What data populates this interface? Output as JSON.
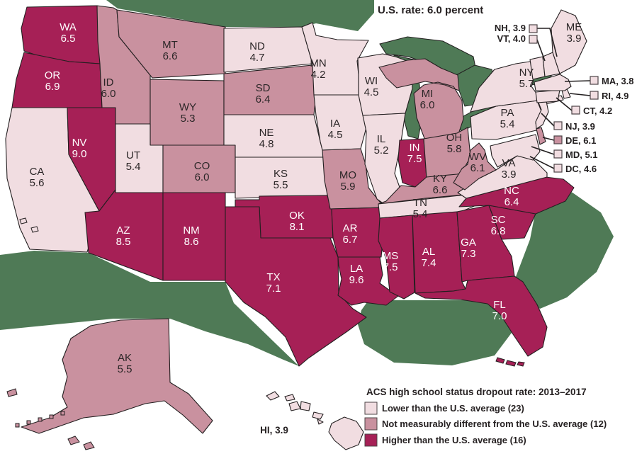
{
  "colors": {
    "lower": "#f1dde1",
    "not_diff": "#c9919f",
    "higher": "#a62056",
    "water": "#4f7a56",
    "border": "#231f20",
    "label_dark": "#2b2627",
    "label_light": "#ffffff"
  },
  "chart_data": {
    "type": "heatmap",
    "subtype": "us_state_choropleth",
    "title": "U.S. rate: 6.0 percent",
    "us_rate_percent": "6.0",
    "legend": {
      "title": "ACS high school status dropout rate: 2013–2017",
      "position": "bottom-right",
      "items": [
        {
          "key": "lower",
          "label": "Lower than the U.S. average (23)"
        },
        {
          "key": "not_diff",
          "label": "Not measurably different from the U.S. average (12)"
        },
        {
          "key": "higher",
          "label": "Higher than the U.S. average (16)"
        }
      ]
    },
    "states": [
      {
        "abbr": "WA",
        "value": "6.5",
        "category": "higher"
      },
      {
        "abbr": "OR",
        "value": "6.9",
        "category": "higher"
      },
      {
        "abbr": "CA",
        "value": "5.6",
        "category": "lower"
      },
      {
        "abbr": "NV",
        "value": "9.0",
        "category": "higher"
      },
      {
        "abbr": "ID",
        "value": "6.0",
        "category": "not_diff"
      },
      {
        "abbr": "MT",
        "value": "6.6",
        "category": "not_diff"
      },
      {
        "abbr": "WY",
        "value": "5.3",
        "category": "not_diff"
      },
      {
        "abbr": "UT",
        "value": "5.4",
        "category": "lower"
      },
      {
        "abbr": "CO",
        "value": "6.0",
        "category": "not_diff"
      },
      {
        "abbr": "AZ",
        "value": "8.5",
        "category": "higher"
      },
      {
        "abbr": "NM",
        "value": "8.6",
        "category": "higher"
      },
      {
        "abbr": "ND",
        "value": "4.7",
        "category": "lower"
      },
      {
        "abbr": "SD",
        "value": "6.4",
        "category": "not_diff"
      },
      {
        "abbr": "NE",
        "value": "4.8",
        "category": "lower"
      },
      {
        "abbr": "KS",
        "value": "5.5",
        "category": "lower"
      },
      {
        "abbr": "OK",
        "value": "8.1",
        "category": "higher"
      },
      {
        "abbr": "TX",
        "value": "7.1",
        "category": "higher"
      },
      {
        "abbr": "MN",
        "value": "4.2",
        "category": "lower"
      },
      {
        "abbr": "IA",
        "value": "4.5",
        "category": "lower"
      },
      {
        "abbr": "MO",
        "value": "5.9",
        "category": "not_diff"
      },
      {
        "abbr": "AR",
        "value": "6.7",
        "category": "higher"
      },
      {
        "abbr": "LA",
        "value": "9.6",
        "category": "higher"
      },
      {
        "abbr": "WI",
        "value": "4.5",
        "category": "lower"
      },
      {
        "abbr": "IL",
        "value": "5.2",
        "category": "lower"
      },
      {
        "abbr": "IN",
        "value": "7.5",
        "category": "higher"
      },
      {
        "abbr": "MI",
        "value": "6.0",
        "category": "not_diff"
      },
      {
        "abbr": "OH",
        "value": "5.8",
        "category": "not_diff"
      },
      {
        "abbr": "KY",
        "value": "6.6",
        "category": "not_diff"
      },
      {
        "abbr": "TN",
        "value": "5.4",
        "category": "lower"
      },
      {
        "abbr": "MS",
        "value": "7.5",
        "category": "higher"
      },
      {
        "abbr": "AL",
        "value": "7.4",
        "category": "higher"
      },
      {
        "abbr": "GA",
        "value": "7.3",
        "category": "higher"
      },
      {
        "abbr": "FL",
        "value": "7.0",
        "category": "higher"
      },
      {
        "abbr": "SC",
        "value": "6.8",
        "category": "higher"
      },
      {
        "abbr": "NC",
        "value": "6.4",
        "category": "higher"
      },
      {
        "abbr": "VA",
        "value": "3.9",
        "category": "lower"
      },
      {
        "abbr": "WV",
        "value": "6.1",
        "category": "not_diff"
      },
      {
        "abbr": "PA",
        "value": "5.4",
        "category": "lower"
      },
      {
        "abbr": "NY",
        "value": "5.7",
        "category": "lower"
      },
      {
        "abbr": "NJ",
        "value": "3.9",
        "category": "lower"
      },
      {
        "abbr": "DE",
        "value": "6.1",
        "category": "not_diff"
      },
      {
        "abbr": "MD",
        "value": "5.1",
        "category": "lower"
      },
      {
        "abbr": "DC",
        "value": "4.6",
        "category": "lower"
      },
      {
        "abbr": "CT",
        "value": "4.2",
        "category": "lower"
      },
      {
        "abbr": "RI",
        "value": "4.9",
        "category": "lower"
      },
      {
        "abbr": "MA",
        "value": "3.8",
        "category": "lower"
      },
      {
        "abbr": "VT",
        "value": "4.0",
        "category": "lower"
      },
      {
        "abbr": "NH",
        "value": "3.9",
        "category": "lower"
      },
      {
        "abbr": "ME",
        "value": "3.9",
        "category": "lower"
      },
      {
        "abbr": "AK",
        "value": "5.5",
        "category": "not_diff"
      },
      {
        "abbr": "HI",
        "value": "3.9",
        "category": "lower"
      }
    ]
  }
}
